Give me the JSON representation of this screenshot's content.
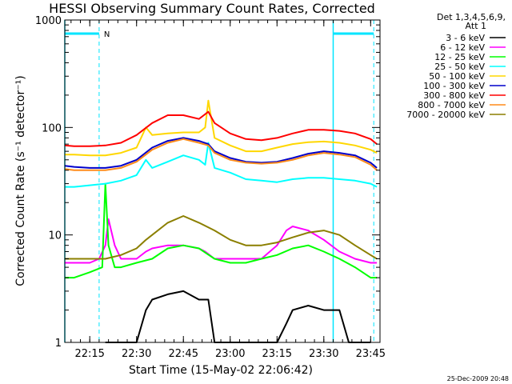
{
  "chart_data": {
    "type": "line",
    "title": "HESSI Observing Summary Count Rates, Corrected",
    "xlabel": "Start Time (15-May-02 22:06:42)",
    "ylabel": "Corrected Count Rate (s⁻¹ detector⁻¹)",
    "y_scale": "log",
    "ylim": [
      1,
      1000
    ],
    "xlim": [
      "22:07",
      "23:48"
    ],
    "x_ticks": [
      "22:15",
      "22:30",
      "22:45",
      "23:00",
      "23:15",
      "23:30",
      "23:45"
    ],
    "y_ticks": [
      "1",
      "10",
      "100",
      "1000"
    ],
    "grid": false,
    "legend_position": "right",
    "legend_header": [
      "Det 1,3,4,5,6,9,",
      "Att 1"
    ],
    "footer_date": "25-Dec-2009 20:48",
    "night_marker_label": "N",
    "series": [
      {
        "name": "3 - 6 keV",
        "color": "#000000",
        "x": [
          "22:07",
          "22:15",
          "22:20",
          "22:25",
          "22:30",
          "22:33",
          "22:35",
          "22:40",
          "22:45",
          "22:50",
          "22:53",
          "22:55",
          "23:00",
          "23:05",
          "23:10",
          "23:15",
          "23:18",
          "23:20",
          "23:25",
          "23:30",
          "23:35",
          "23:38",
          "23:40",
          "23:45",
          "23:47"
        ],
        "y": [
          null,
          null,
          1,
          1,
          1,
          2,
          2.5,
          2.8,
          3,
          2.5,
          2.5,
          1,
          1,
          1,
          1,
          1,
          1.5,
          2,
          2.2,
          2,
          2,
          1,
          1,
          1,
          null
        ]
      },
      {
        "name": "6 - 12 keV",
        "color": "#ff00ff",
        "x": [
          "22:07",
          "22:10",
          "22:15",
          "22:18",
          "22:20",
          "22:21",
          "22:23",
          "22:25",
          "22:30",
          "22:33",
          "22:35",
          "22:40",
          "22:45",
          "22:50",
          "22:52",
          "22:55",
          "23:00",
          "23:05",
          "23:10",
          "23:15",
          "23:18",
          "23:20",
          "23:25",
          "23:30",
          "23:35",
          "23:40",
          "23:45",
          "23:47"
        ],
        "y": [
          5.5,
          5.5,
          5.5,
          6,
          8,
          14,
          8,
          6,
          6,
          7,
          7.5,
          8,
          8,
          7.5,
          7,
          6,
          6,
          6,
          6,
          8,
          11,
          12,
          11,
          9,
          7,
          6,
          5.5,
          5.5
        ]
      },
      {
        "name": "12 - 25 keV",
        "color": "#00ff00",
        "x": [
          "22:07",
          "22:10",
          "22:15",
          "22:19",
          "22:20",
          "22:21",
          "22:23",
          "22:25",
          "22:30",
          "22:35",
          "22:40",
          "22:45",
          "22:50",
          "22:55",
          "23:00",
          "23:05",
          "23:10",
          "23:15",
          "23:20",
          "23:25",
          "23:30",
          "23:35",
          "23:40",
          "23:45",
          "23:47"
        ],
        "y": [
          4,
          4,
          4.5,
          5,
          30,
          8,
          5,
          5,
          5.5,
          6,
          7.5,
          8,
          7.5,
          6,
          5.5,
          5.5,
          6,
          6.5,
          7.5,
          8,
          7,
          6,
          5,
          4,
          4
        ]
      },
      {
        "name": "25 - 50 keV",
        "color": "#00ffff",
        "x": [
          "22:07",
          "22:10",
          "22:15",
          "22:20",
          "22:25",
          "22:30",
          "22:33",
          "22:35",
          "22:40",
          "22:45",
          "22:50",
          "22:52",
          "22:53",
          "22:55",
          "23:00",
          "23:05",
          "23:10",
          "23:15",
          "23:20",
          "23:25",
          "23:30",
          "23:35",
          "23:40",
          "23:45",
          "23:47"
        ],
        "y": [
          28,
          28,
          29,
          30,
          32,
          36,
          50,
          42,
          48,
          55,
          50,
          45,
          72,
          42,
          38,
          33,
          32,
          31,
          33,
          34,
          34,
          33,
          32,
          30,
          28
        ]
      },
      {
        "name": "50 - 100 keV",
        "color": "#ffd700",
        "x": [
          "22:07",
          "22:10",
          "22:15",
          "22:20",
          "22:25",
          "22:30",
          "22:33",
          "22:35",
          "22:40",
          "22:45",
          "22:50",
          "22:52",
          "22:53",
          "22:55",
          "23:00",
          "23:05",
          "23:10",
          "23:15",
          "23:20",
          "23:25",
          "23:30",
          "23:35",
          "23:40",
          "23:45",
          "23:47"
        ],
        "y": [
          56,
          56,
          55,
          55,
          58,
          65,
          100,
          85,
          88,
          90,
          90,
          100,
          178,
          80,
          68,
          60,
          60,
          65,
          70,
          73,
          74,
          72,
          68,
          62,
          58
        ]
      },
      {
        "name": "100 - 300 keV",
        "color": "#0000cc",
        "x": [
          "22:07",
          "22:10",
          "22:15",
          "22:20",
          "22:25",
          "22:30",
          "22:35",
          "22:40",
          "22:45",
          "22:50",
          "22:53",
          "22:55",
          "23:00",
          "23:05",
          "23:10",
          "23:15",
          "23:20",
          "23:25",
          "23:30",
          "23:35",
          "23:40",
          "23:45",
          "23:47"
        ],
        "y": [
          44,
          43,
          42,
          42,
          44,
          50,
          65,
          75,
          80,
          75,
          70,
          60,
          52,
          48,
          47,
          48,
          52,
          57,
          60,
          58,
          55,
          47,
          42
        ]
      },
      {
        "name": "300 - 800 keV",
        "color": "#ff0000",
        "x": [
          "22:07",
          "22:10",
          "22:15",
          "22:20",
          "22:25",
          "22:30",
          "22:35",
          "22:40",
          "22:45",
          "22:50",
          "22:53",
          "22:55",
          "23:00",
          "23:05",
          "23:10",
          "23:15",
          "23:20",
          "23:25",
          "23:30",
          "23:35",
          "23:40",
          "23:45",
          "23:47"
        ],
        "y": [
          68,
          67,
          67,
          68,
          72,
          85,
          110,
          130,
          130,
          120,
          140,
          110,
          88,
          78,
          76,
          80,
          88,
          95,
          95,
          93,
          88,
          78,
          70
        ]
      },
      {
        "name": "800 - 7000 keV",
        "color": "#ff8c1a",
        "x": [
          "22:07",
          "22:10",
          "22:15",
          "22:20",
          "22:25",
          "22:30",
          "22:35",
          "22:40",
          "22:45",
          "22:50",
          "22:53",
          "22:55",
          "23:00",
          "23:05",
          "23:10",
          "23:15",
          "23:20",
          "23:25",
          "23:30",
          "23:35",
          "23:40",
          "23:45",
          "23:47"
        ],
        "y": [
          41,
          40,
          40,
          40,
          42,
          48,
          62,
          72,
          78,
          72,
          68,
          58,
          50,
          47,
          46,
          47,
          50,
          55,
          58,
          56,
          53,
          45,
          40
        ]
      },
      {
        "name": "7000 - 20000 keV",
        "color": "#8b7f00",
        "x": [
          "22:07",
          "22:10",
          "22:15",
          "22:20",
          "22:25",
          "22:30",
          "22:33",
          "22:35",
          "22:40",
          "22:45",
          "22:50",
          "22:55",
          "23:00",
          "23:05",
          "23:10",
          "23:15",
          "23:20",
          "23:25",
          "23:30",
          "23:35",
          "23:40",
          "23:45",
          "23:47"
        ],
        "y": [
          6,
          6,
          6,
          6,
          6.5,
          7.5,
          9,
          10,
          13,
          15,
          13,
          11,
          9,
          8,
          8,
          8.5,
          9.5,
          10.5,
          11,
          10,
          8,
          6.5,
          6
        ]
      }
    ],
    "night_markers": {
      "solid_lines": [
        "22:07",
        "23:33"
      ],
      "dashed_lines": [
        "22:18",
        "23:46"
      ],
      "bars": [
        [
          "22:07",
          "22:18"
        ],
        [
          "23:33",
          "23:46"
        ]
      ]
    }
  }
}
